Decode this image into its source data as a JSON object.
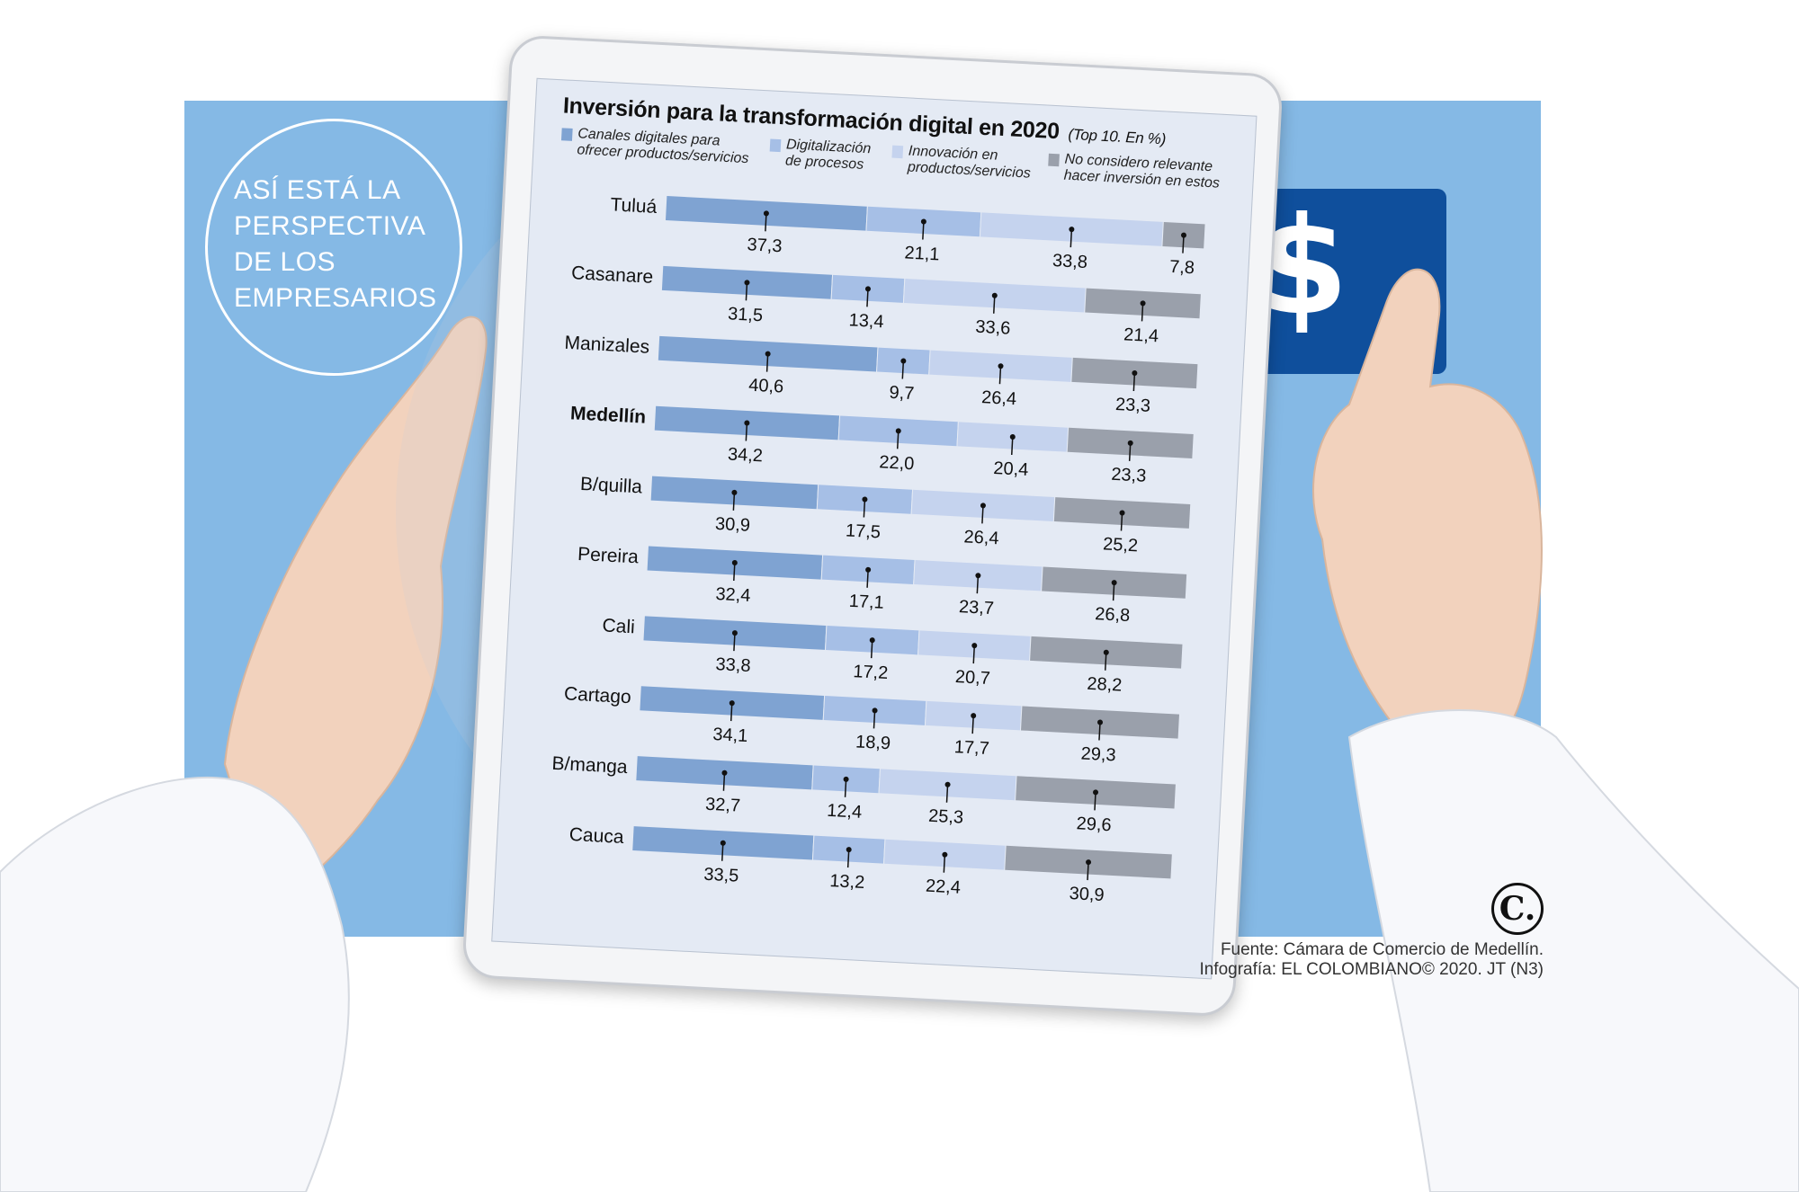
{
  "badge": {
    "lines": [
      "ASÍ ESTÁ LA",
      "PERSPECTIVA",
      "DE LOS",
      "EMPRESARIOS"
    ]
  },
  "card": {
    "symbol": "$"
  },
  "source": {
    "line1": "Fuente: Cámara de Comercio de Medellín.",
    "line2": "Infografía: EL COLOMBIANO© 2020. JT (N3)"
  },
  "logo": {
    "text": "C."
  },
  "colors": {
    "background": "#85b9e5",
    "card": "#0f4f9c",
    "series": [
      "#7fa3d2",
      "#a6bfe6",
      "#c5d3ee",
      "#9aa0ab"
    ]
  },
  "chart_data": {
    "type": "bar",
    "orientation": "horizontal",
    "stacked": true,
    "title": "Inversión para la transformación digital en 2020",
    "subtitle": "(Top 10.  En %)",
    "categories": [
      "Tuluá",
      "Casanare",
      "Manizales",
      "Medellín",
      "B/quilla",
      "Pereira",
      "Cali",
      "Cartago",
      "B/manga",
      "Cauca"
    ],
    "highlight_category": "Medellín",
    "series": [
      {
        "name": "Canales digitales para ofrecer productos/servicios",
        "values": [
          37.3,
          31.5,
          40.6,
          34.2,
          30.9,
          32.4,
          33.8,
          34.1,
          32.7,
          33.5
        ]
      },
      {
        "name": "Digitalización de procesos",
        "values": [
          21.1,
          13.4,
          9.7,
          22.0,
          17.5,
          17.1,
          17.2,
          18.9,
          12.4,
          13.2
        ]
      },
      {
        "name": "Innovación en productos/servicios",
        "values": [
          33.8,
          33.6,
          26.4,
          20.4,
          26.4,
          23.7,
          20.7,
          17.7,
          25.3,
          22.4
        ]
      },
      {
        "name": "No considero relevante hacer inversión en estos",
        "values": [
          7.8,
          21.4,
          23.3,
          23.3,
          25.2,
          26.8,
          28.2,
          29.3,
          29.6,
          30.9
        ]
      }
    ],
    "value_labels": [
      [
        "37,3",
        "31,5",
        "40,6",
        "34,2",
        "30,9",
        "32,4",
        "33,8",
        "34,1",
        "32,7",
        "33,5"
      ],
      [
        "21,1",
        "13,4",
        "9,7",
        "22,0",
        "17,5",
        "17,1",
        "17,2",
        "18,9",
        "12,4",
        "13,2"
      ],
      [
        "33,8",
        "33,6",
        "26,4",
        "20,4",
        "26,4",
        "23,7",
        "20,7",
        "17,7",
        "25,3",
        "22,4"
      ],
      [
        "7,8",
        "21,4",
        "23,3",
        "23,3",
        "25,2",
        "26,8",
        "28,2",
        "29,3",
        "29,6",
        "30,9"
      ]
    ],
    "legend": {
      "placement": "top",
      "labels": [
        "Canales digitales para\nofrecer productos/servicios",
        "Digitalización\nde procesos",
        "Innovación en\nproductos/servicios",
        "No considero relevante\nhacer inversión en estos"
      ]
    },
    "xlim": [
      0,
      100
    ]
  }
}
